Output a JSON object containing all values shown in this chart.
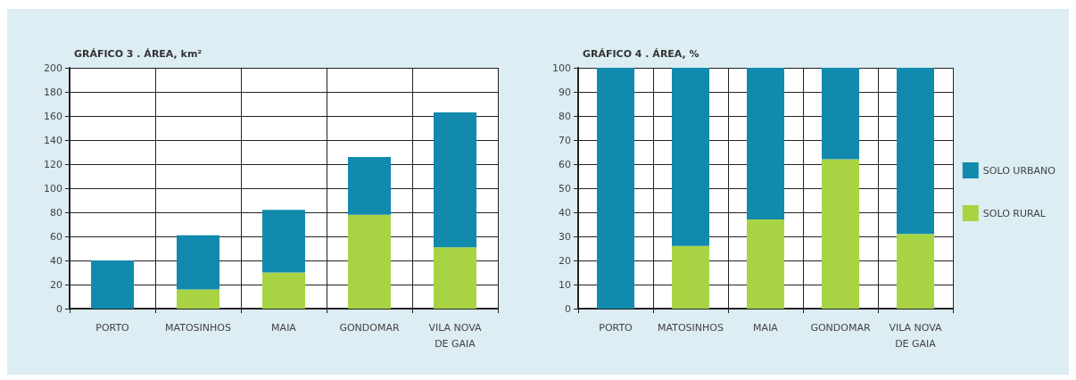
{
  "chart_data": [
    {
      "type": "bar",
      "title": "GRÁFICO 3 . ÁREA, km²",
      "categories": [
        "PORTO",
        "MATOSINHOS",
        "MAIA",
        "GONDOMAR",
        "VILA NOVA DE GAIA"
      ],
      "stacked": true,
      "series": [
        {
          "color": "#a8d444",
          "values": [
            0,
            16,
            30,
            78,
            51
          ]
        },
        {
          "color": "#128aae",
          "values": [
            40,
            45,
            52,
            48,
            112
          ]
        }
      ],
      "ylim": [
        0,
        200
      ],
      "yticks": [
        0,
        20,
        40,
        60,
        80,
        100,
        120,
        140,
        160,
        180,
        200
      ],
      "grid": true,
      "legend": false
    },
    {
      "type": "bar",
      "title": "GRÁFICO 4 . ÁREA, %",
      "categories": [
        "PORTO",
        "MATOSINHOS",
        "MAIA",
        "GONDOMAR",
        "VILA NOVA DE GAIA"
      ],
      "stacked": true,
      "series": [
        {
          "name": "SOLO RURAL",
          "color": "#a8d444",
          "values": [
            0,
            26,
            37,
            62,
            31
          ]
        },
        {
          "name": "SOLO URBANO",
          "color": "#128aae",
          "values": [
            100,
            74,
            63,
            38,
            69
          ]
        }
      ],
      "ylim": [
        0,
        100
      ],
      "yticks": [
        0,
        10,
        20,
        30,
        40,
        50,
        60,
        70,
        80,
        90,
        100
      ],
      "grid": true,
      "legend": "right"
    }
  ]
}
